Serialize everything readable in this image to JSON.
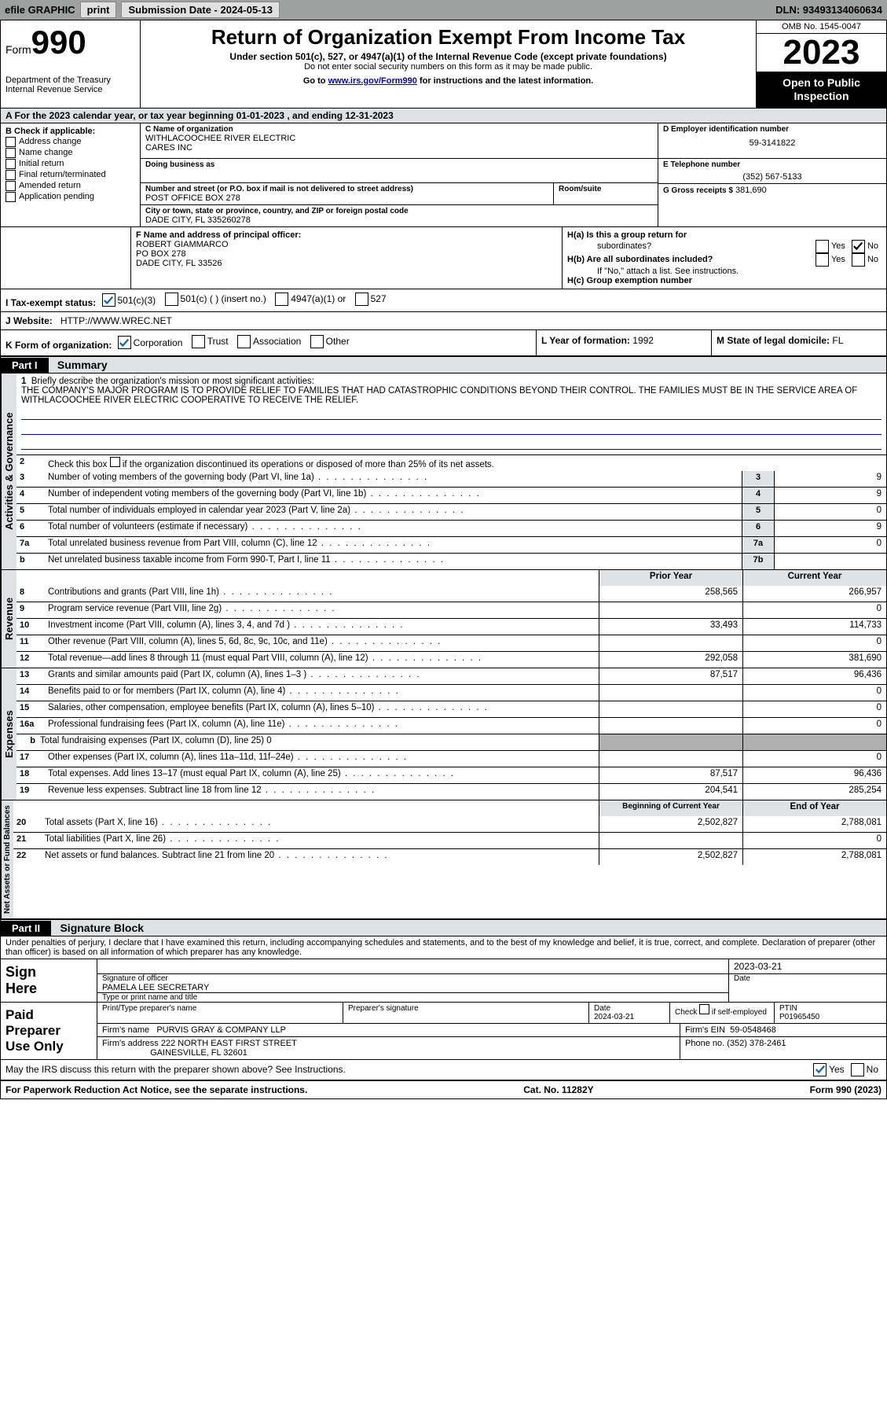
{
  "topbar": {
    "efile_label": "efile GRAPHIC",
    "print_btn": "print",
    "sub_date_label": "Submission Date - 2024-05-13",
    "dln_label": "DLN: 93493134060634"
  },
  "header": {
    "form_word": "Form",
    "form_num": "990",
    "dept": "Department of the Treasury",
    "irs": "Internal Revenue Service",
    "title": "Return of Organization Exempt From Income Tax",
    "sub": "Under section 501(c), 527, or 4947(a)(1) of the Internal Revenue Code (except private foundations)",
    "warn": "Do not enter social security numbers on this form as it may be made public.",
    "goto_pre": "Go to ",
    "goto_link": "www.irs.gov/Form990",
    "goto_post": " for instructions and the latest information.",
    "omb": "OMB No. 1545-0047",
    "year": "2023",
    "open1": "Open to Public",
    "open2": "Inspection"
  },
  "period": "A   For the 2023 calendar year, or tax year beginning 01-01-2023    , and ending 12-31-2023",
  "boxB": {
    "title": "B Check if applicable:",
    "opts": [
      "Address change",
      "Name change",
      "Initial return",
      "Final return/terminated",
      "Amended return",
      "Application pending"
    ]
  },
  "boxC": {
    "name_lbl": "C Name of organization",
    "name": "WITHLACOOCHEE RIVER ELECTRIC",
    "name2": "CARES INC",
    "dba_lbl": "Doing business as",
    "street_lbl": "Number and street (or P.O. box if mail is not delivered to street address)",
    "room_lbl": "Room/suite",
    "street": "POST OFFICE BOX 278",
    "city_lbl": "City or town, state or province, country, and ZIP or foreign postal code",
    "city": "DADE CITY, FL  335260278"
  },
  "boxD": {
    "lbl": "D Employer identification number",
    "val": "59-3141822"
  },
  "boxE": {
    "lbl": "E Telephone number",
    "val": "(352) 567-5133"
  },
  "boxG": {
    "lbl": "G Gross receipts $",
    "val": "381,690"
  },
  "boxF": {
    "lbl": "F  Name and address of principal officer:",
    "name": "ROBERT GIAMMARCO",
    "addr1": "PO BOX 278",
    "addr2": "DADE CITY, FL  33526"
  },
  "boxH": {
    "ha": "H(a)  Is this a group return for",
    "ha2": "subordinates?",
    "hb": "H(b)  Are all subordinates included?",
    "hb_note": "If \"No,\" attach a list. See instructions.",
    "hc": "H(c)  Group exemption number",
    "yes": "Yes",
    "no": "No"
  },
  "rowI": {
    "lbl": "I    Tax-exempt status:",
    "o1": "501(c)(3)",
    "o2": "501(c) (  ) (insert no.)",
    "o3": "4947(a)(1) or",
    "o4": "527"
  },
  "rowJ": {
    "lbl": "J    Website:",
    "val": "HTTP://WWW.WREC.NET"
  },
  "rowK": {
    "lbl": "K Form of organization:",
    "o1": "Corporation",
    "o2": "Trust",
    "o3": "Association",
    "o4": "Other"
  },
  "rowL": {
    "lbl": "L Year of formation:",
    "val": "1992"
  },
  "rowM": {
    "lbl": "M State of legal domicile:",
    "val": "FL"
  },
  "part1": {
    "hdr": "Part I",
    "title": "Summary"
  },
  "mission": {
    "lbl": "Briefly describe the organization's mission or most significant activities:",
    "text": "THE COMPANY'S MAJOR PROGRAM IS TO PROVIDE RELIEF TO FAMILIES THAT HAD CATASTROPHIC CONDITIONS BEYOND THEIR CONTROL. THE FAMILIES MUST BE IN THE SERVICE AREA OF WITHLACOOCHEE RIVER ELECTRIC COOPERATIVE TO RECEIVE THE RELIEF."
  },
  "line2": "Check this box      if the organization discontinued its operations or disposed of more than 25% of its net assets.",
  "gov_rows": [
    {
      "n": "3",
      "d": "Number of voting members of the governing body (Part VI, line 1a)",
      "bn": "3",
      "bv": "9"
    },
    {
      "n": "4",
      "d": "Number of independent voting members of the governing body (Part VI, line 1b)",
      "bn": "4",
      "bv": "9"
    },
    {
      "n": "5",
      "d": "Total number of individuals employed in calendar year 2023 (Part V, line 2a)",
      "bn": "5",
      "bv": "0"
    },
    {
      "n": "6",
      "d": "Total number of volunteers (estimate if necessary)",
      "bn": "6",
      "bv": "9"
    },
    {
      "n": "7a",
      "d": "Total unrelated business revenue from Part VIII, column (C), line 12",
      "bn": "7a",
      "bv": "0"
    },
    {
      "n": "b",
      "d": "Net unrelated business taxable income from Form 990-T, Part I, line 11",
      "bn": "7b",
      "bv": ""
    }
  ],
  "py_hdr": "Prior Year",
  "cy_hdr": "Current Year",
  "rev_rows": [
    {
      "n": "8",
      "d": "Contributions and grants (Part VIII, line 1h)",
      "p": "258,565",
      "c": "266,957"
    },
    {
      "n": "9",
      "d": "Program service revenue (Part VIII, line 2g)",
      "p": "",
      "c": "0"
    },
    {
      "n": "10",
      "d": "Investment income (Part VIII, column (A), lines 3, 4, and 7d )",
      "p": "33,493",
      "c": "114,733"
    },
    {
      "n": "11",
      "d": "Other revenue (Part VIII, column (A), lines 5, 6d, 8c, 9c, 10c, and 11e)",
      "p": "",
      "c": "0"
    },
    {
      "n": "12",
      "d": "Total revenue—add lines 8 through 11 (must equal Part VIII, column (A), line 12)",
      "p": "292,058",
      "c": "381,690"
    }
  ],
  "exp_rows": [
    {
      "n": "13",
      "d": "Grants and similar amounts paid (Part IX, column (A), lines 1–3 )",
      "p": "87,517",
      "c": "96,436"
    },
    {
      "n": "14",
      "d": "Benefits paid to or for members (Part IX, column (A), line 4)",
      "p": "",
      "c": "0"
    },
    {
      "n": "15",
      "d": "Salaries, other compensation, employee benefits (Part IX, column (A), lines 5–10)",
      "p": "",
      "c": "0"
    },
    {
      "n": "16a",
      "d": "Professional fundraising fees (Part IX, column (A), line 11e)",
      "p": "",
      "c": "0"
    },
    {
      "n": "b",
      "d": "Total fundraising expenses (Part IX, column (D), line 25) 0",
      "p": null,
      "c": null
    },
    {
      "n": "17",
      "d": "Other expenses (Part IX, column (A), lines 11a–11d, 11f–24e)",
      "p": "",
      "c": "0"
    },
    {
      "n": "18",
      "d": "Total expenses. Add lines 13–17 (must equal Part IX, column (A), line 25)",
      "p": "87,517",
      "c": "96,436"
    },
    {
      "n": "19",
      "d": "Revenue less expenses. Subtract line 18 from line 12",
      "p": "204,541",
      "c": "285,254"
    }
  ],
  "na_hdr_p": "Beginning of Current Year",
  "na_hdr_c": "End of Year",
  "na_rows": [
    {
      "n": "20",
      "d": "Total assets (Part X, line 16)",
      "p": "2,502,827",
      "c": "2,788,081"
    },
    {
      "n": "21",
      "d": "Total liabilities (Part X, line 26)",
      "p": "",
      "c": "0"
    },
    {
      "n": "22",
      "d": "Net assets or fund balances. Subtract line 21 from line 20",
      "p": "2,502,827",
      "c": "2,788,081"
    }
  ],
  "vlabels": {
    "gov": "Activities & Governance",
    "rev": "Revenue",
    "exp": "Expenses",
    "na": "Net Assets or Fund Balances"
  },
  "part2": {
    "hdr": "Part II",
    "title": "Signature Block"
  },
  "penalties": "Under penalties of perjury, I declare that I have examined this return, including accompanying schedules and statements, and to the best of my knowledge and belief, it is true, correct, and complete. Declaration of preparer (other than officer) is based on all information of which preparer has any knowledge.",
  "sign": {
    "lbl1": "Sign",
    "lbl2": "Here",
    "sig_lbl": "Signature of officer",
    "sig_name": "PAMELA LEE  SECRETARY",
    "name_lbl": "Type or print name and title",
    "date_lbl": "Date",
    "date": "2023-03-21"
  },
  "prep": {
    "lbl1": "Paid",
    "lbl2": "Preparer",
    "lbl3": "Use Only",
    "print_lbl": "Print/Type preparer's name",
    "sig_lbl": "Preparer's signature",
    "date_lbl": "Date",
    "date": "2024-03-21",
    "chk_lbl": "Check        if self-employed",
    "ptin_lbl": "PTIN",
    "ptin": "P01965450",
    "firm_name_lbl": "Firm's name",
    "firm_name": "PURVIS GRAY & COMPANY LLP",
    "firm_ein_lbl": "Firm's EIN",
    "firm_ein": "59-0548468",
    "firm_addr_lbl": "Firm's address",
    "firm_addr1": "222 NORTH EAST FIRST STREET",
    "firm_addr2": "GAINESVILLE, FL  32601",
    "phone_lbl": "Phone no.",
    "phone": "(352) 378-2461"
  },
  "discuss": "May the IRS discuss this return with the preparer shown above? See Instructions.",
  "footer": {
    "pra": "For Paperwork Reduction Act Notice, see the separate instructions.",
    "cat": "Cat. No. 11282Y",
    "form": "Form 990 (2023)"
  },
  "colors": {
    "link": "#0000cc",
    "grey_bg": "#dfe2e5",
    "dark_grey": "#b0b0b0",
    "black": "#000000"
  }
}
